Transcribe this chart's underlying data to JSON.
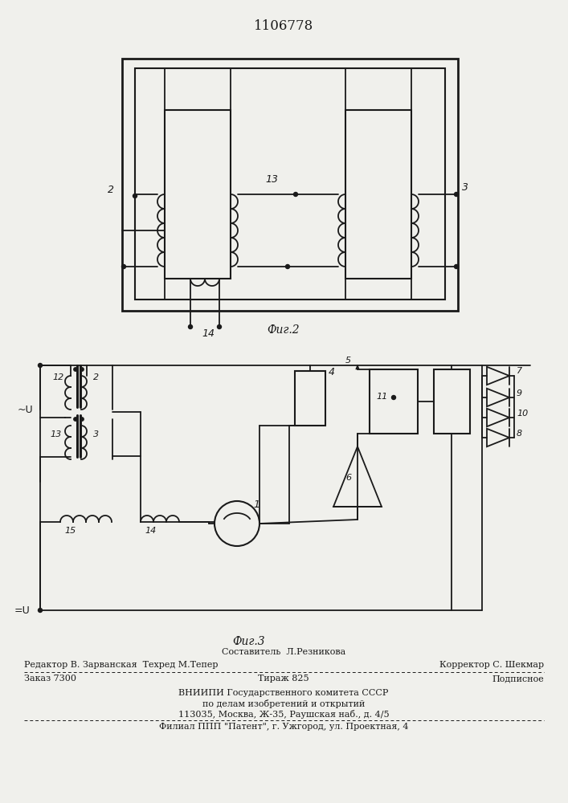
{
  "title": "1106778",
  "bg_color": "#f0f0ec",
  "line_color": "#1a1a1a",
  "footer": {
    "line1": "Составитель  Л.Резникова",
    "line2_left": "Редактор В. Зарванская  Техред М.Тепер",
    "line2_right": "Корректор С. Шекмар",
    "line3_1": "Заказ 7300",
    "line3_2": "Тираж 825",
    "line3_3": "Подписное",
    "line4": "ВНИИПИ Государственного комитета СССР",
    "line5": "по делам изобретений и открытий",
    "line6": "113035, Москва, Ж-35, Раушская наб., д. 4/5",
    "line7": "Филиал ППП \"Патент\", г. Ужгород, ул. Проектная, 4"
  }
}
